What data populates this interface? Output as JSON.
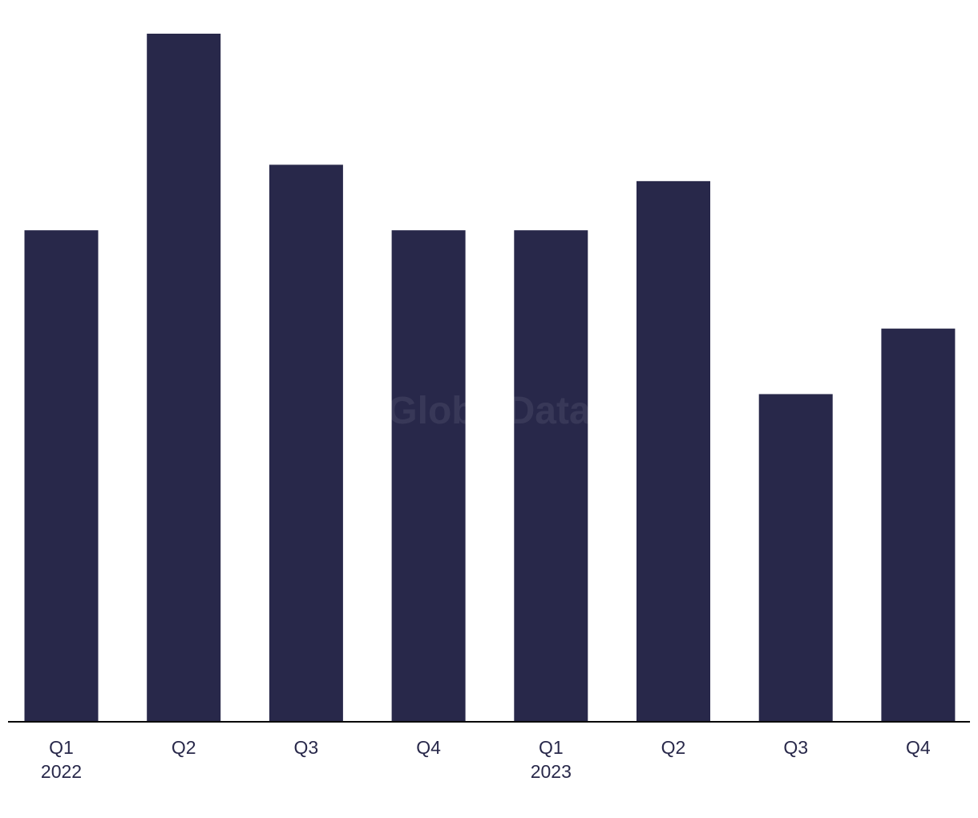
{
  "chart_data": {
    "type": "bar",
    "title": "",
    "xlabel": "",
    "ylabel": "",
    "categories": [
      "Q1 2022",
      "Q2",
      "Q3",
      "Q4",
      "Q1 2023",
      "Q2",
      "Q3",
      "Q4"
    ],
    "tick_labels": [
      {
        "line1": "Q1",
        "line2": "2022"
      },
      {
        "line1": "Q2",
        "line2": ""
      },
      {
        "line1": "Q3",
        "line2": ""
      },
      {
        "line1": "Q4",
        "line2": ""
      },
      {
        "line1": "Q1",
        "line2": "2023"
      },
      {
        "line1": "Q2",
        "line2": ""
      },
      {
        "line1": "Q3",
        "line2": ""
      },
      {
        "line1": "Q4",
        "line2": ""
      }
    ],
    "values": [
      30,
      42,
      34,
      30,
      30,
      33,
      20,
      24
    ],
    "ylim": [
      0,
      42
    ],
    "grid": false,
    "y_axis_shown": false,
    "bar_color": "#28284a",
    "axis_color": "#000000"
  },
  "watermark": "GlobalData"
}
